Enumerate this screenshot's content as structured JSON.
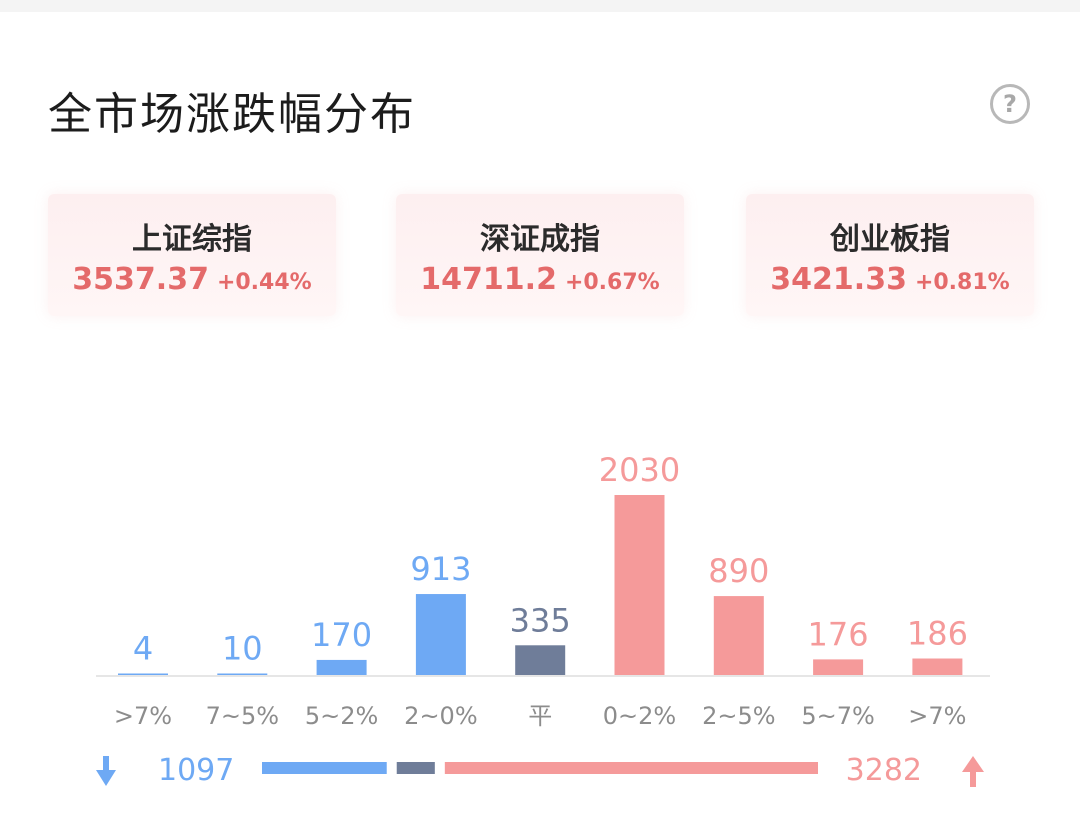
{
  "header": {
    "title": "全市场涨跌幅分布",
    "help_symbol": "?"
  },
  "indices": [
    {
      "name": "上证综指",
      "value": "3537.37",
      "change": "+0.44%"
    },
    {
      "name": "深证成指",
      "value": "14711.2",
      "change": "+0.67%"
    },
    {
      "name": "创业板指",
      "value": "3421.33",
      "change": "+0.81%"
    }
  ],
  "colors": {
    "down": "#6ea9f4",
    "flat": "#6f7d99",
    "up": "#f59a9a",
    "axis": "#e6e6e6"
  },
  "chart_data": {
    "type": "bar",
    "categories": [
      ">7%",
      "7~5%",
      "5~2%",
      "2~0%",
      "平",
      "0~2%",
      "2~5%",
      "5~7%",
      ">7%"
    ],
    "values": [
      4,
      10,
      170,
      913,
      335,
      2030,
      890,
      176,
      186
    ],
    "groups": [
      "down",
      "down",
      "down",
      "down",
      "flat",
      "up",
      "up",
      "up",
      "up"
    ]
  },
  "summary": {
    "down_icon": "arrow-down-icon",
    "down_total": "1097",
    "flat_total": 335,
    "up_total": "3282",
    "up_icon": "arrow-up-icon"
  }
}
